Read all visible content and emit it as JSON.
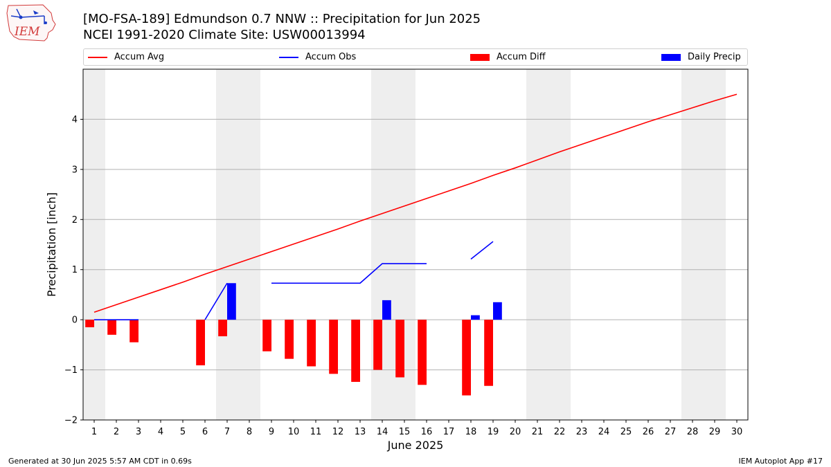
{
  "title_line1": "[MO-FSA-189] Edmundson 0.7 NNW :: Precipitation for Jun 2025",
  "title_line2": "NCEI 1991-2020 Climate Site: USW00013994",
  "logo_text": "IEM",
  "footer_left": "Generated at 30 Jun 2025 5:57 AM CDT in 0.69s",
  "footer_right": "IEM Autoplot App #17",
  "colors": {
    "avg": "#ff0000",
    "obs": "#0000ff",
    "diff": "#ff0000",
    "daily": "#0000ff",
    "weekend": "#eeeeee",
    "grid": "#b0b0b0"
  },
  "chart_data": {
    "type": "bar",
    "xlabel": "June 2025",
    "ylabel": "Precipitation [inch]",
    "xlim": [
      0.5,
      30.5
    ],
    "ylim": [
      -2.0,
      5.0
    ],
    "yticks": [
      -2,
      -1,
      0,
      1,
      2,
      3,
      4
    ],
    "ytick_labels": [
      "−2",
      "−1",
      "0",
      "1",
      "2",
      "3",
      "4"
    ],
    "xticks": [
      1,
      2,
      3,
      4,
      5,
      6,
      7,
      8,
      9,
      10,
      11,
      12,
      13,
      14,
      15,
      16,
      17,
      18,
      19,
      20,
      21,
      22,
      23,
      24,
      25,
      26,
      27,
      28,
      29,
      30
    ],
    "grid": "horizontal",
    "legend_position": "top",
    "weekend_days": [
      1,
      7,
      8,
      14,
      15,
      21,
      22,
      28,
      29
    ],
    "series": [
      {
        "name": "Accum Avg",
        "kind": "line",
        "x": [
          1,
          2,
          3,
          4,
          5,
          6,
          7,
          8,
          9,
          10,
          11,
          12,
          13,
          14,
          15,
          16,
          17,
          18,
          19,
          20,
          21,
          22,
          23,
          24,
          25,
          26,
          27,
          28,
          29,
          30
        ],
        "values": [
          0.15,
          0.3,
          0.45,
          0.6,
          0.75,
          0.91,
          1.06,
          1.21,
          1.36,
          1.51,
          1.66,
          1.81,
          1.97,
          2.12,
          2.27,
          2.42,
          2.57,
          2.72,
          2.88,
          3.03,
          3.19,
          3.35,
          3.5,
          3.65,
          3.8,
          3.95,
          4.09,
          4.23,
          4.37,
          4.5
        ]
      },
      {
        "name": "Accum Obs",
        "kind": "line",
        "x": [
          1,
          2,
          3,
          4,
          5,
          6,
          7,
          8,
          9,
          10,
          11,
          12,
          13,
          14,
          15,
          16,
          17,
          18,
          19,
          20,
          21,
          22,
          23,
          24,
          25,
          26,
          27,
          28,
          29,
          30
        ],
        "values": [
          0,
          0,
          0,
          null,
          null,
          0,
          0.73,
          null,
          0.73,
          0.73,
          0.73,
          0.73,
          0.73,
          1.12,
          1.12,
          1.12,
          null,
          1.21,
          1.56,
          null,
          null,
          null,
          null,
          null,
          null,
          null,
          null,
          null,
          null,
          null
        ]
      },
      {
        "name": "Accum Diff",
        "kind": "bar",
        "x": [
          1,
          2,
          3,
          6,
          7,
          9,
          10,
          11,
          12,
          13,
          14,
          15,
          16,
          18,
          19
        ],
        "values": [
          -0.15,
          -0.3,
          -0.45,
          -0.91,
          -0.33,
          -0.63,
          -0.78,
          -0.93,
          -1.08,
          -1.24,
          -1.0,
          -1.15,
          -1.3,
          -1.51,
          -1.32
        ]
      },
      {
        "name": "Daily Precip",
        "kind": "bar",
        "x": [
          7,
          14,
          18,
          19
        ],
        "values": [
          0.73,
          0.39,
          0.09,
          0.35
        ]
      }
    ]
  }
}
